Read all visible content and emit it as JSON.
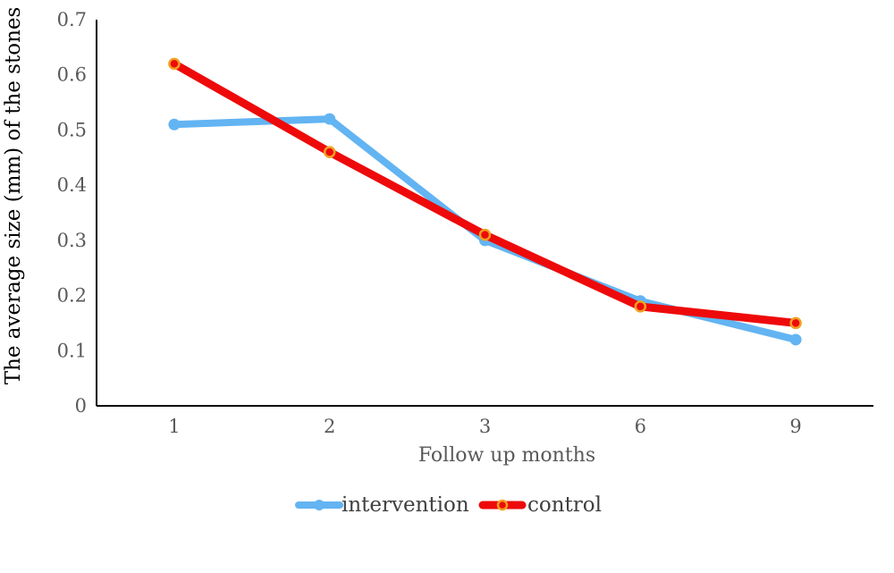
{
  "chart_data": {
    "type": "line",
    "categories": [
      "1",
      "2",
      "3",
      "6",
      "9"
    ],
    "series": [
      {
        "name": "intervention",
        "values": [
          0.51,
          0.52,
          0.3,
          0.19,
          0.12
        ],
        "color": "#63b4f2"
      },
      {
        "name": "control",
        "values": [
          0.62,
          0.46,
          0.31,
          0.18,
          0.15
        ],
        "color": "#ee0a0a",
        "marker_color": "#f0a020"
      }
    ],
    "xlabel": "Follow up months",
    "ylabel": "The average size (mm) of the stones",
    "ylim": [
      0,
      0.7
    ],
    "yticks": [
      "0",
      "0.1",
      "0.2",
      "0.3",
      "0.4",
      "0.5",
      "0.6",
      "0.7"
    ],
    "grid": false,
    "legend": "bottom"
  }
}
